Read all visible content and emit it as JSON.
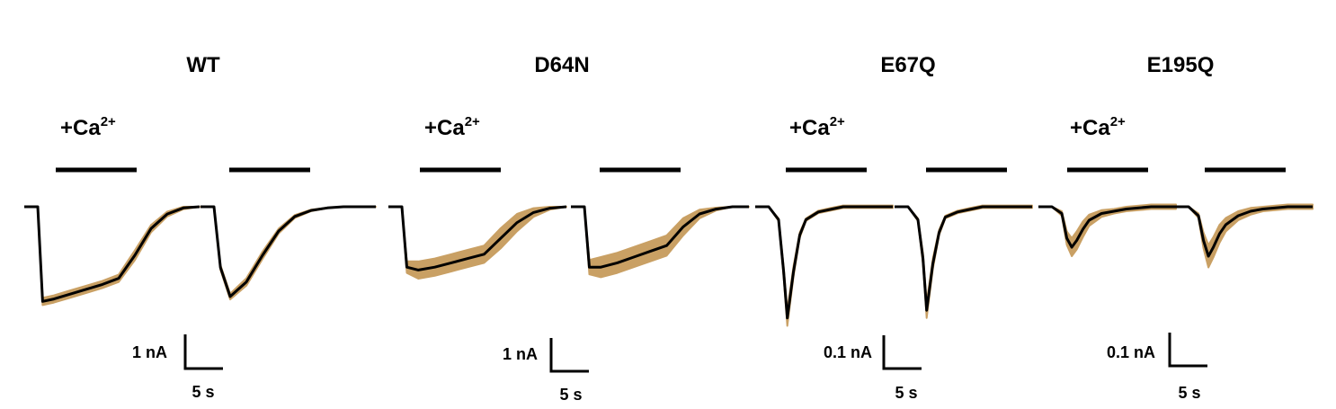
{
  "colors": {
    "mean_trace": "#000000",
    "sem_band": "#c9a064",
    "stimulus_bar": "#000000"
  },
  "panels": [
    {
      "title": "WT",
      "stim_label": "+Ca",
      "stim_sup": "2+",
      "scale_current": "1 nA",
      "scale_time": "5 s"
    },
    {
      "title": "D64N",
      "stim_label": "+Ca",
      "stim_sup": "2+",
      "scale_current": "1 nA",
      "scale_time": "5 s"
    },
    {
      "title": "E67Q",
      "stim_label": "+Ca",
      "stim_sup": "2+",
      "scale_current": "0.1 nA",
      "scale_time": "5 s"
    },
    {
      "title": "E195Q",
      "stim_label": "+Ca",
      "stim_sup": "2+",
      "scale_current": "0.1 nA",
      "scale_time": "5 s"
    }
  ],
  "chart_data": {
    "type": "line",
    "x_unit": "s",
    "traces": [
      {
        "panel": "WT",
        "trace": 1,
        "stim_window_s": [
          0,
          5
        ],
        "y_unit": "nA",
        "x": [
          0,
          0.3,
          1,
          2,
          3,
          4,
          5,
          6,
          7,
          8,
          9,
          10
        ],
        "mean": [
          0,
          -3.9,
          -3.8,
          -3.6,
          -3.4,
          -3.2,
          -2.95,
          -2.0,
          -0.9,
          -0.3,
          -0.05,
          0
        ],
        "sem": [
          0,
          0.15,
          0.15,
          0.15,
          0.15,
          0.15,
          0.15,
          0.2,
          0.15,
          0.1,
          0.05,
          0
        ]
      },
      {
        "panel": "WT",
        "trace": 2,
        "stim_window_s": [
          0,
          5
        ],
        "y_unit": "nA",
        "x": [
          0,
          0.4,
          1,
          2,
          3,
          4,
          5,
          6,
          7,
          8,
          9,
          10
        ],
        "mean": [
          0,
          -2.5,
          -3.7,
          -3.1,
          -2.0,
          -1.0,
          -0.4,
          -0.15,
          -0.05,
          0,
          0,
          0
        ],
        "sem": [
          0,
          0.1,
          0.12,
          0.15,
          0.15,
          0.1,
          0.06,
          0.03,
          0.01,
          0,
          0,
          0
        ]
      },
      {
        "panel": "D64N",
        "trace": 1,
        "stim_window_s": [
          0,
          5
        ],
        "y_unit": "nA",
        "x": [
          0,
          0.3,
          1,
          2,
          3,
          4,
          5,
          6,
          7,
          8,
          9,
          10
        ],
        "mean": [
          0,
          -2.1,
          -2.2,
          -2.1,
          -1.95,
          -1.8,
          -1.65,
          -1.1,
          -0.55,
          -0.2,
          -0.05,
          0
        ],
        "sem": [
          0,
          0.2,
          0.3,
          0.3,
          0.3,
          0.3,
          0.3,
          0.35,
          0.3,
          0.15,
          0.05,
          0
        ]
      },
      {
        "panel": "D64N",
        "trace": 2,
        "stim_window_s": [
          0,
          5
        ],
        "y_unit": "nA",
        "x": [
          0,
          0.3,
          1,
          2,
          3,
          4,
          5,
          6,
          7,
          8,
          9,
          10
        ],
        "mean": [
          0,
          -2.1,
          -2.1,
          -1.95,
          -1.75,
          -1.55,
          -1.35,
          -0.7,
          -0.25,
          -0.08,
          0,
          0
        ],
        "sem": [
          0,
          0.25,
          0.35,
          0.35,
          0.35,
          0.35,
          0.35,
          0.3,
          0.15,
          0.05,
          0,
          0
        ]
      },
      {
        "panel": "E67Q",
        "trace": 1,
        "stim_window_s": [
          0,
          5
        ],
        "y_unit": "nA",
        "x": [
          0,
          0.8,
          1.2,
          1.5,
          2,
          2.5,
          3,
          4,
          5,
          6,
          8,
          10
        ],
        "mean": [
          0,
          -0.05,
          -0.25,
          -0.43,
          -0.25,
          -0.11,
          -0.05,
          -0.02,
          -0.01,
          0,
          0,
          0
        ],
        "sem": [
          0,
          0.005,
          0.02,
          0.03,
          0.02,
          0.01,
          0.005,
          0.005,
          0.005,
          0.005,
          0.005,
          0.005
        ]
      },
      {
        "panel": "E67Q",
        "trace": 2,
        "stim_window_s": [
          0,
          5
        ],
        "y_unit": "nA",
        "x": [
          0,
          0.8,
          1.2,
          1.5,
          2,
          2.5,
          3,
          4,
          5,
          6,
          8,
          10
        ],
        "mean": [
          0,
          -0.05,
          -0.2,
          -0.4,
          -0.22,
          -0.1,
          -0.04,
          -0.02,
          -0.01,
          0,
          0,
          0
        ],
        "sem": [
          0,
          0.005,
          0.02,
          0.03,
          0.02,
          0.01,
          0.005,
          0.005,
          0.005,
          0.005,
          0.005,
          0.005
        ]
      },
      {
        "panel": "E195Q",
        "trace": 1,
        "stim_window_s": [
          0,
          5
        ],
        "y_unit": "nA",
        "x": [
          0,
          0.8,
          1.2,
          1.6,
          2,
          2.5,
          3,
          4,
          5,
          6,
          8,
          10
        ],
        "mean": [
          0,
          -0.03,
          -0.14,
          -0.18,
          -0.15,
          -0.1,
          -0.06,
          -0.03,
          -0.02,
          -0.01,
          0,
          0
        ],
        "sem": [
          0,
          0.01,
          0.03,
          0.04,
          0.04,
          0.035,
          0.025,
          0.015,
          0.01,
          0.01,
          0.01,
          0.01
        ]
      },
      {
        "panel": "E195Q",
        "trace": 2,
        "stim_window_s": [
          0,
          5
        ],
        "y_unit": "nA",
        "x": [
          0,
          0.8,
          1.2,
          1.6,
          2,
          2.5,
          3,
          4,
          5,
          6,
          8,
          10
        ],
        "mean": [
          0,
          -0.04,
          -0.15,
          -0.22,
          -0.18,
          -0.12,
          -0.08,
          -0.04,
          -0.02,
          -0.01,
          0,
          0
        ],
        "sem": [
          0,
          0.01,
          0.035,
          0.05,
          0.045,
          0.04,
          0.03,
          0.02,
          0.015,
          0.01,
          0.01,
          0.01
        ]
      }
    ]
  }
}
